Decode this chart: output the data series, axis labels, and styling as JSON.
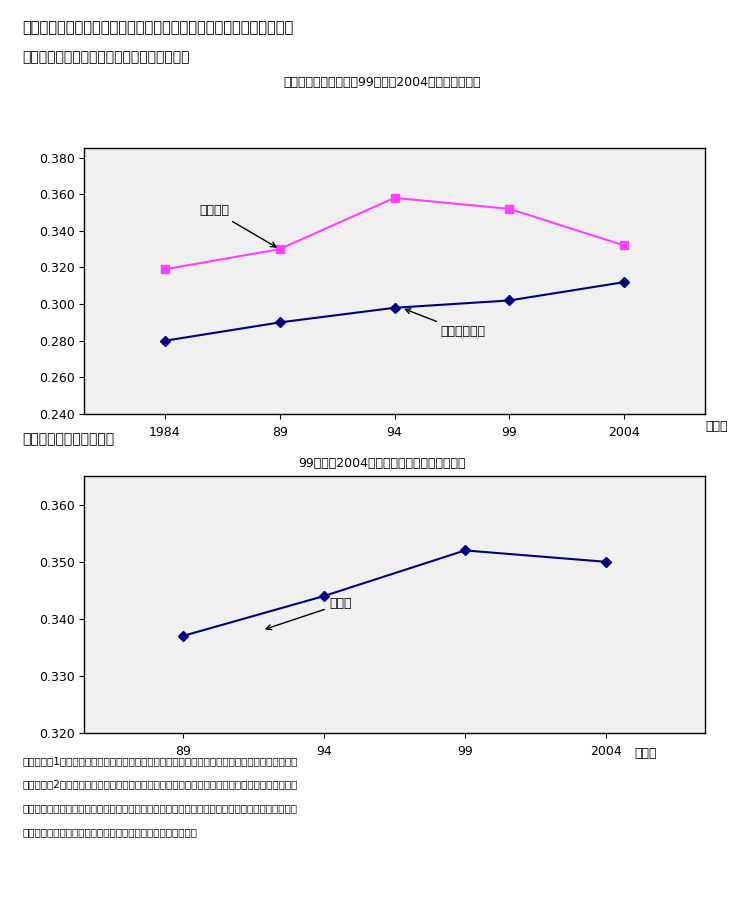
{
  "title": "第３－３－２図　「全国消費実態調査」による所得のジニ係数の推移",
  "subtitle1": "（１）単身世帯及び二人以上世帯のジニ係数",
  "subtitle1_sub": "単身世帯のジニ係数は99年から2004年にかけて低下",
  "subtitle2": "（２）総世帯のジニ係数",
  "subtitle2_sub": "99年から2004年にかけてわずかながら低下",
  "chart1": {
    "years": [
      1984,
      1989,
      1994,
      1999,
      2004
    ],
    "tansin": [
      0.319,
      0.33,
      0.358,
      0.352,
      0.332
    ],
    "ninin": [
      0.28,
      0.29,
      0.298,
      0.302,
      0.312
    ],
    "ylim": [
      0.24,
      0.385
    ],
    "yticks": [
      0.24,
      0.26,
      0.28,
      0.3,
      0.32,
      0.34,
      0.36,
      0.38
    ],
    "xtick_labels": [
      "1984",
      "89",
      "94",
      "99",
      "2004"
    ],
    "label_tansin": "単身世帯",
    "label_ninin": "二人以上世帯",
    "color_tansin": "#FF40FF",
    "color_ninin": "#000080"
  },
  "chart2": {
    "years": [
      1989,
      1994,
      1999,
      2004
    ],
    "so_setai": [
      0.337,
      0.344,
      0.352,
      0.35
    ],
    "ylim": [
      0.32,
      0.365
    ],
    "yticks": [
      0.32,
      0.33,
      0.34,
      0.35,
      0.36
    ],
    "xtick_labels": [
      "89",
      "94",
      "99",
      "2004"
    ],
    "label_so": "総世帯",
    "color_so": "#000080"
  },
  "footnote": [
    "（備考）　1．総務省「全国消費実態調査」により作成。但し、総世帯のみ特別集計し推計した。",
    "　　　　　2．「全国消費実態調査」（総世帯結果）のジニ係数を作成するにあたっては、所得は",
    "　　　　　　　年間収入を用いた。なお、年間収入とは、公的年金・恩給を含み、税金が除かれる",
    "　　　　　　　前の所得である。以降の図表についても同じ。"
  ],
  "bg_color": "#FFFFFF",
  "plot_bg": "#F0F0F0"
}
